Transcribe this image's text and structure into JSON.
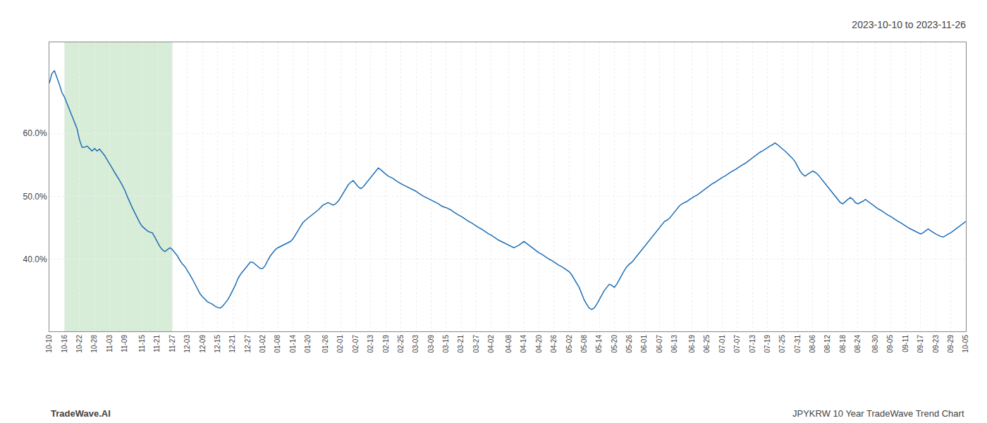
{
  "chart_data": {
    "type": "line",
    "title": "2023-10-10 to 2023-11-26",
    "annotations": [
      "TradeWave.AI",
      "JPYKRW 10 Year TradeWave Trend Chart"
    ],
    "color": "#1f6fb5",
    "highlight": {
      "start": "10-16",
      "end": "11-27",
      "color": "#d8edd8"
    },
    "grid": true,
    "ylim": [
      0.285,
      0.745
    ],
    "yticks": [
      {
        "value": 0.4,
        "label": "40.0%"
      },
      {
        "value": 0.5,
        "label": "50.0%"
      },
      {
        "value": 0.6,
        "label": "60.0%"
      }
    ],
    "categories": [
      "10-10",
      null,
      null,
      null,
      null,
      null,
      "10-16",
      null,
      null,
      null,
      null,
      null,
      "10-22",
      null,
      null,
      null,
      null,
      null,
      "10-28",
      null,
      null,
      null,
      null,
      null,
      "11-03",
      null,
      null,
      null,
      null,
      null,
      "11-09",
      null,
      null,
      null,
      null,
      null,
      null,
      "11-15",
      null,
      null,
      null,
      null,
      null,
      "11-21",
      null,
      null,
      null,
      null,
      null,
      "11-27",
      null,
      null,
      null,
      null,
      null,
      "12-03",
      null,
      null,
      null,
      null,
      null,
      "12-09",
      null,
      null,
      null,
      null,
      null,
      "12-15",
      null,
      null,
      null,
      null,
      null,
      "12-21",
      null,
      null,
      null,
      null,
      null,
      "12-27",
      null,
      null,
      null,
      null,
      null,
      "01-02",
      null,
      null,
      null,
      null,
      null,
      "01-08",
      null,
      null,
      null,
      null,
      null,
      "01-14",
      null,
      null,
      null,
      null,
      null,
      "01-20",
      null,
      null,
      null,
      null,
      null,
      null,
      "01-26",
      null,
      null,
      null,
      null,
      null,
      "02-01",
      null,
      null,
      null,
      null,
      null,
      "02-07",
      null,
      null,
      null,
      null,
      null,
      "02-13",
      null,
      null,
      null,
      null,
      null,
      "02-19",
      null,
      null,
      null,
      null,
      null,
      "02-25",
      null,
      null,
      null,
      null,
      null,
      "03-03",
      null,
      null,
      null,
      null,
      null,
      "03-09",
      null,
      null,
      null,
      null,
      null,
      "03-15",
      null,
      null,
      null,
      null,
      null,
      "03-21",
      null,
      null,
      null,
      null,
      null,
      "03-27",
      null,
      null,
      null,
      null,
      null,
      "04-02",
      null,
      null,
      null,
      null,
      null,
      null,
      "04-08",
      null,
      null,
      null,
      null,
      null,
      "04-14",
      null,
      null,
      null,
      null,
      null,
      "04-20",
      null,
      null,
      null,
      null,
      null,
      "04-26",
      null,
      null,
      null,
      null,
      null,
      "05-02",
      null,
      null,
      null,
      null,
      null,
      "05-08",
      null,
      null,
      null,
      null,
      null,
      "05-14",
      null,
      null,
      null,
      null,
      null,
      "05-20",
      null,
      null,
      null,
      null,
      null,
      "05-26",
      null,
      null,
      null,
      null,
      null,
      "06-01",
      null,
      null,
      null,
      null,
      null,
      "06-07",
      null,
      null,
      null,
      null,
      null,
      "06-13",
      null,
      null,
      null,
      null,
      null,
      null,
      "06-19",
      null,
      null,
      null,
      null,
      null,
      "06-25",
      null,
      null,
      null,
      null,
      null,
      "07-01",
      null,
      null,
      null,
      null,
      null,
      "07-07",
      null,
      null,
      null,
      null,
      null,
      "07-13",
      null,
      null,
      null,
      null,
      null,
      "07-19",
      null,
      null,
      null,
      null,
      null,
      "07-25",
      null,
      null,
      null,
      null,
      null,
      "07-31",
      null,
      null,
      null,
      null,
      null,
      "08-06",
      null,
      null,
      null,
      null,
      null,
      "08-12",
      null,
      null,
      null,
      null,
      null,
      "08-18",
      null,
      null,
      null,
      null,
      null,
      "08-24",
      null,
      null,
      null,
      null,
      null,
      null,
      "08-30",
      null,
      null,
      null,
      null,
      null,
      "09-05",
      null,
      null,
      null,
      null,
      null,
      "09-11",
      null,
      null,
      null,
      null,
      null,
      "09-17",
      null,
      null,
      null,
      null,
      null,
      "09-23",
      null,
      null,
      null,
      null,
      null,
      "09-29",
      null,
      null,
      null,
      null,
      null,
      "10-05"
    ],
    "values": [
      0.68,
      0.695,
      0.7,
      0.69,
      0.678,
      0.665,
      0.658,
      0.648,
      0.638,
      0.628,
      0.618,
      0.608,
      0.59,
      0.578,
      0.578,
      0.58,
      0.576,
      0.572,
      0.576,
      0.572,
      0.575,
      0.57,
      0.565,
      0.558,
      0.552,
      0.545,
      0.538,
      0.532,
      0.525,
      0.518,
      0.51,
      0.5,
      0.49,
      0.482,
      0.474,
      0.466,
      0.458,
      0.452,
      0.448,
      0.445,
      0.443,
      0.442,
      0.435,
      0.428,
      0.42,
      0.415,
      0.412,
      0.415,
      0.418,
      0.415,
      0.41,
      0.405,
      0.398,
      0.392,
      0.388,
      0.382,
      0.375,
      0.368,
      0.36,
      0.352,
      0.345,
      0.34,
      0.336,
      0.332,
      0.33,
      0.328,
      0.325,
      0.323,
      0.322,
      0.325,
      0.33,
      0.335,
      0.342,
      0.35,
      0.358,
      0.368,
      0.375,
      0.38,
      0.385,
      0.39,
      0.395,
      0.395,
      0.392,
      0.388,
      0.385,
      0.385,
      0.39,
      0.398,
      0.405,
      0.41,
      0.415,
      0.418,
      0.42,
      0.422,
      0.424,
      0.426,
      0.428,
      0.432,
      0.438,
      0.445,
      0.452,
      0.458,
      0.462,
      0.465,
      0.468,
      0.472,
      0.475,
      0.478,
      0.482,
      0.486,
      0.488,
      0.49,
      0.488,
      0.486,
      0.488,
      0.492,
      0.498,
      0.505,
      0.512,
      0.518,
      0.522,
      0.525,
      0.52,
      0.515,
      0.512,
      0.515,
      0.52,
      0.525,
      0.53,
      0.535,
      0.54,
      0.545,
      0.542,
      0.538,
      0.535,
      0.532,
      0.53,
      0.528,
      0.525,
      0.522,
      0.52,
      0.518,
      0.516,
      0.514,
      0.512,
      0.51,
      0.508,
      0.505,
      0.502,
      0.5,
      0.498,
      0.496,
      0.494,
      0.492,
      0.49,
      0.488,
      0.485,
      0.483,
      0.482,
      0.48,
      0.478,
      0.475,
      0.472,
      0.47,
      0.468,
      0.465,
      0.462,
      0.46,
      0.458,
      0.455,
      0.452,
      0.45,
      0.448,
      0.445,
      0.442,
      0.44,
      0.438,
      0.435,
      0.432,
      0.43,
      0.428,
      0.426,
      0.424,
      0.422,
      0.42,
      0.418,
      0.42,
      0.422,
      0.425,
      0.428,
      0.425,
      0.422,
      0.418,
      0.415,
      0.412,
      0.41,
      0.408,
      0.405,
      0.402,
      0.4,
      0.398,
      0.395,
      0.392,
      0.39,
      0.388,
      0.385,
      0.382,
      0.38,
      0.375,
      0.368,
      0.362,
      0.355,
      0.345,
      0.335,
      0.328,
      0.322,
      0.32,
      0.322,
      0.328,
      0.335,
      0.342,
      0.35,
      0.355,
      0.36,
      0.358,
      0.355,
      0.36,
      0.368,
      0.375,
      0.382,
      0.388,
      0.392,
      0.395,
      0.4,
      0.405,
      0.41,
      0.415,
      0.42,
      0.425,
      0.43,
      0.435,
      0.44,
      0.445,
      0.45,
      0.455,
      0.46,
      0.462,
      0.465,
      0.47,
      0.475,
      0.48,
      0.485,
      0.488,
      0.49,
      0.492,
      0.495,
      0.498,
      0.5,
      0.502,
      0.505,
      0.508,
      0.512,
      0.515,
      0.518,
      0.52,
      0.522,
      0.525,
      0.528,
      0.53,
      0.532,
      0.535,
      0.538,
      0.54,
      0.542,
      0.545,
      0.548,
      0.55,
      0.552,
      0.555,
      0.558,
      0.562,
      0.565,
      0.568,
      0.57,
      0.572,
      0.575,
      0.578,
      0.58,
      0.582,
      0.585,
      0.582,
      0.578,
      0.575,
      0.572,
      0.568,
      0.565,
      0.56,
      0.555,
      0.548,
      0.54,
      0.535,
      0.532,
      0.535,
      0.538,
      0.54,
      0.538,
      0.535,
      0.53,
      0.525,
      0.52,
      0.515,
      0.51,
      0.505,
      0.5,
      0.495,
      0.49,
      0.488,
      0.492,
      0.495,
      0.498,
      0.495,
      0.49,
      0.488,
      0.49,
      0.492,
      0.495,
      0.492,
      0.488,
      0.485,
      0.482,
      0.48,
      0.478,
      0.475,
      0.472,
      0.47,
      0.468,
      0.465,
      0.462,
      0.46,
      0.458,
      0.455,
      0.452,
      0.45,
      0.448,
      0.446,
      0.444,
      0.442,
      0.44,
      0.442,
      0.445,
      0.448,
      0.445,
      0.442,
      0.44,
      0.438,
      0.436,
      0.435,
      0.438,
      0.44,
      0.442,
      0.445,
      0.448,
      0.452,
      0.455,
      0.458,
      0.46
    ]
  }
}
